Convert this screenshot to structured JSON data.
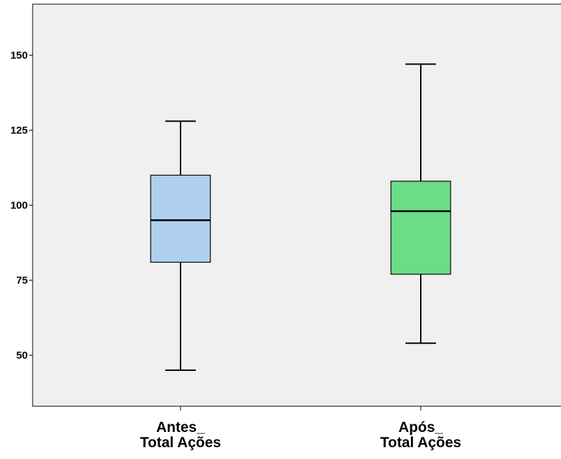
{
  "chart_data": {
    "type": "boxplot",
    "title": "",
    "xlabel": "",
    "ylabel": "",
    "ylim": [
      33,
      167
    ],
    "yticks": [
      50,
      75,
      100,
      125,
      150
    ],
    "grid": false,
    "legend": "none",
    "colors": {
      "plot_background": "#f0f0f0",
      "axis": "#000000"
    },
    "categories": [
      {
        "line1": "Antes_",
        "line2": "Total Ações"
      },
      {
        "line1": "Após_",
        "line2": "Total Ações"
      }
    ],
    "boxes": [
      {
        "min": 45,
        "q1": 81,
        "median": 95,
        "q3": 110,
        "max": 128,
        "color": "#aecfed"
      },
      {
        "min": 54,
        "q1": 77,
        "median": 98,
        "q3": 108,
        "max": 147,
        "color": "#6ddc86"
      }
    ]
  }
}
